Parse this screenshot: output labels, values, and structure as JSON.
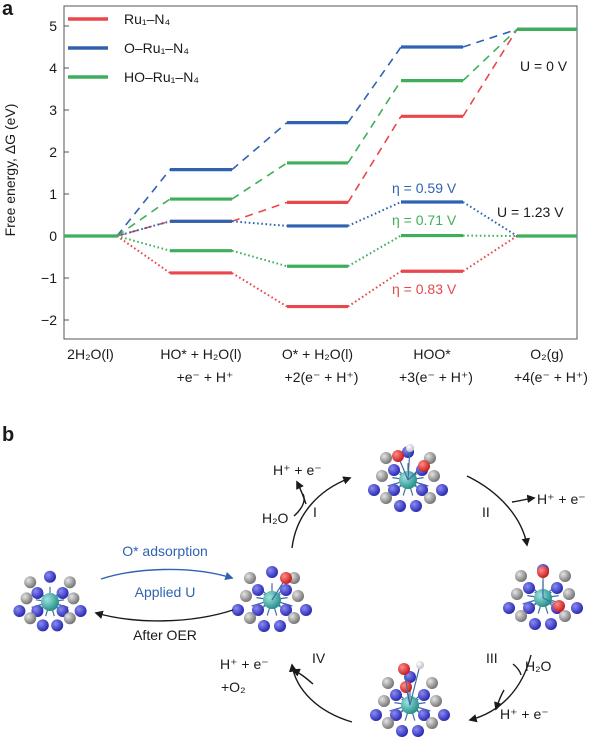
{
  "panel_a": {
    "label": "a"
  },
  "panel_b": {
    "label": "b"
  },
  "chart_data": {
    "type": "line",
    "title": "",
    "ylabel": "Free energy, ΔG (eV)",
    "xlabel": "",
    "ylim": [
      -2.5,
      5.5
    ],
    "yticks": [
      -2,
      -1,
      0,
      1,
      2,
      3,
      4,
      5
    ],
    "ytick_labels": [
      "−2",
      "−1",
      "0",
      "1",
      "2",
      "3",
      "4",
      "5"
    ],
    "categories": [
      {
        "line1": "2H₂O(l)",
        "line2": ""
      },
      {
        "line1": "HO* + H₂O(l)",
        "line2": "+e⁻ + H⁺"
      },
      {
        "line1": "O* + H₂O(l)",
        "line2": "+2(e⁻ + H⁺)"
      },
      {
        "line1": "HOO*",
        "line2": "+3(e⁻ + H⁺)"
      },
      {
        "line1": "O₂(g)",
        "line2": "+4(e⁻ + H⁺)"
      }
    ],
    "series": [
      {
        "name": "Ru₁–N₄",
        "color": "#e8474c",
        "u0": [
          0,
          0.35,
          0.8,
          2.85,
          4.92
        ],
        "u123": [
          0,
          -0.88,
          -1.68,
          -0.84,
          0
        ]
      },
      {
        "name": "O–Ru₁–N₄",
        "color": "#2f63b0",
        "u0": [
          0,
          1.58,
          2.7,
          4.5,
          4.92
        ],
        "u123": [
          0,
          0.35,
          0.24,
          0.81,
          0
        ]
      },
      {
        "name": "HO–Ru₁–N₄",
        "color": "#3fae5a",
        "u0": [
          0,
          0.88,
          1.74,
          3.7,
          4.92
        ],
        "u123": [
          0,
          -0.35,
          -0.72,
          0.01,
          0
        ]
      }
    ],
    "legend_position": "top-left",
    "annotations": {
      "u0": "U = 0 V",
      "u123": "U = 1.23 V",
      "eta": [
        "η = 0.83 V",
        "η = 0.59 V",
        "η = 0.71 V"
      ]
    }
  },
  "cycle": {
    "adsorption": "O* adsorption",
    "applied": "Applied U",
    "after": "After OER",
    "steps": {
      "I": {
        "numeral": "I",
        "in": "H₂O",
        "out": "H⁺ + e⁻"
      },
      "II": {
        "numeral": "II",
        "out": "H⁺ + e⁻"
      },
      "III": {
        "numeral": "III",
        "in": "H₂O",
        "out": "H⁺ + e⁻"
      },
      "IV": {
        "numeral": "IV",
        "out1": "H⁺ + e⁻",
        "out2": "+O₂"
      }
    }
  }
}
